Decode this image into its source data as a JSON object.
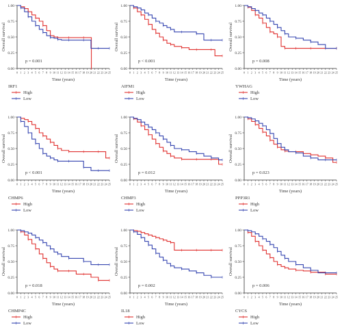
{
  "colors": {
    "high": "#e0302f",
    "low": "#3545b0",
    "axis": "#333333"
  },
  "chart_data": [
    {
      "type": "line",
      "gene": "IRF1",
      "p_value": "p = 0.001",
      "ylabel": "Overall survival",
      "xlabel": "Time (years)",
      "xlim": [
        0,
        25
      ],
      "ylim": [
        0,
        1
      ],
      "yticks": [
        "0.00",
        "0.25",
        "0.50",
        "0.75",
        "1.00"
      ],
      "series": [
        {
          "name": "High",
          "x": [
            0,
            1,
            2,
            3,
            4,
            5,
            6,
            7,
            8,
            9,
            10,
            11,
            12,
            14,
            16,
            18,
            20,
            20.1
          ],
          "y": [
            1.0,
            0.98,
            0.95,
            0.9,
            0.85,
            0.8,
            0.75,
            0.68,
            0.6,
            0.52,
            0.5,
            0.49,
            0.49,
            0.49,
            0.49,
            0.49,
            0.49,
            0.0
          ]
        },
        {
          "name": "Low",
          "x": [
            0,
            1,
            2,
            3,
            4,
            5,
            6,
            7,
            8,
            9,
            10,
            11,
            12,
            14,
            16,
            18,
            20,
            22,
            24,
            25
          ],
          "y": [
            1.0,
            0.96,
            0.9,
            0.82,
            0.75,
            0.68,
            0.62,
            0.57,
            0.52,
            0.49,
            0.48,
            0.46,
            0.45,
            0.45,
            0.45,
            0.45,
            0.32,
            0.32,
            0.32,
            0.32
          ]
        }
      ]
    },
    {
      "type": "line",
      "gene": "AIFM1",
      "p_value": "p < 0.001",
      "ylabel": "Overall survival",
      "xlabel": "Time (years)",
      "xlim": [
        0,
        25
      ],
      "ylim": [
        0,
        1
      ],
      "yticks": [
        "0.00",
        "0.25",
        "0.50",
        "0.75",
        "1.00"
      ],
      "series": [
        {
          "name": "High",
          "x": [
            0,
            1,
            2,
            3,
            4,
            5,
            6,
            7,
            8,
            9,
            10,
            11,
            12,
            14,
            16,
            18,
            20,
            22,
            23,
            25
          ],
          "y": [
            1.0,
            0.96,
            0.9,
            0.85,
            0.78,
            0.7,
            0.62,
            0.56,
            0.5,
            0.45,
            0.4,
            0.38,
            0.35,
            0.33,
            0.3,
            0.3,
            0.3,
            0.3,
            0.2,
            0.2
          ]
        },
        {
          "name": "Low",
          "x": [
            0,
            1,
            2,
            3,
            4,
            5,
            6,
            7,
            8,
            9,
            10,
            11,
            12,
            14,
            16,
            18,
            20,
            22,
            24,
            25
          ],
          "y": [
            1.0,
            0.98,
            0.96,
            0.93,
            0.88,
            0.85,
            0.8,
            0.75,
            0.72,
            0.68,
            0.65,
            0.62,
            0.58,
            0.58,
            0.58,
            0.55,
            0.45,
            0.45,
            0.45,
            0.45
          ]
        }
      ]
    },
    {
      "type": "line",
      "gene": "YWHAG",
      "p_value": "p = 0.008",
      "ylabel": "Overall survival",
      "xlabel": "Time (years)",
      "xlim": [
        0,
        25
      ],
      "ylim": [
        0,
        1
      ],
      "yticks": [
        "0.00",
        "0.25",
        "0.50",
        "0.75",
        "1.00"
      ],
      "series": [
        {
          "name": "High",
          "x": [
            0,
            1,
            2,
            3,
            4,
            5,
            6,
            7,
            8,
            9,
            10,
            11,
            12,
            14,
            16,
            18,
            20,
            22,
            24,
            25
          ],
          "y": [
            1.0,
            0.97,
            0.92,
            0.85,
            0.8,
            0.72,
            0.65,
            0.58,
            0.55,
            0.5,
            0.35,
            0.32,
            0.32,
            0.32,
            0.32,
            0.32,
            0.32,
            0.32,
            0.32,
            0.32
          ]
        },
        {
          "name": "Low",
          "x": [
            0,
            1,
            2,
            3,
            4,
            5,
            6,
            7,
            8,
            9,
            10,
            11,
            12,
            14,
            16,
            18,
            20,
            22,
            24,
            25
          ],
          "y": [
            1.0,
            0.98,
            0.95,
            0.92,
            0.88,
            0.85,
            0.8,
            0.75,
            0.7,
            0.65,
            0.6,
            0.55,
            0.5,
            0.48,
            0.45,
            0.42,
            0.38,
            0.32,
            0.32,
            0.32
          ]
        }
      ]
    },
    {
      "type": "line",
      "gene": "CHMP6",
      "p_value": "p < 0.001",
      "ylabel": "Overall survival",
      "xlabel": "Time (years)",
      "xlim": [
        0,
        25
      ],
      "ylim": [
        0,
        1
      ],
      "yticks": [
        "0.00",
        "0.25",
        "0.50",
        "0.75",
        "1.00"
      ],
      "series": [
        {
          "name": "High",
          "x": [
            0,
            1,
            2,
            3,
            4,
            5,
            6,
            7,
            8,
            9,
            10,
            11,
            12,
            14,
            16,
            18,
            20,
            22,
            24,
            25
          ],
          "y": [
            1.0,
            0.98,
            0.96,
            0.93,
            0.88,
            0.82,
            0.75,
            0.7,
            0.65,
            0.6,
            0.55,
            0.5,
            0.47,
            0.45,
            0.45,
            0.45,
            0.45,
            0.45,
            0.35,
            0.35
          ]
        },
        {
          "name": "Low",
          "x": [
            0,
            1,
            2,
            3,
            4,
            5,
            6,
            7,
            8,
            9,
            10,
            11,
            12,
            14,
            16,
            18,
            20,
            22,
            24,
            25
          ],
          "y": [
            1.0,
            0.93,
            0.85,
            0.75,
            0.65,
            0.58,
            0.5,
            0.42,
            0.38,
            0.35,
            0.32,
            0.3,
            0.3,
            0.3,
            0.3,
            0.2,
            0.15,
            0.15,
            0.15,
            0.15
          ]
        }
      ]
    },
    {
      "type": "line",
      "gene": "CHMP3",
      "p_value": "p = 0.012",
      "ylabel": "Overall survival",
      "xlabel": "Time (years)",
      "xlim": [
        0,
        25
      ],
      "ylim": [
        0,
        1
      ],
      "yticks": [
        "0.00",
        "0.25",
        "0.50",
        "0.75",
        "1.00"
      ],
      "series": [
        {
          "name": "High",
          "x": [
            0,
            1,
            2,
            3,
            4,
            5,
            6,
            7,
            8,
            9,
            10,
            11,
            12,
            14,
            16,
            18,
            20,
            22,
            24,
            25
          ],
          "y": [
            1.0,
            0.97,
            0.92,
            0.86,
            0.8,
            0.72,
            0.65,
            0.58,
            0.52,
            0.46,
            0.42,
            0.38,
            0.35,
            0.33,
            0.33,
            0.33,
            0.33,
            0.33,
            0.25,
            0.25
          ]
        },
        {
          "name": "Low",
          "x": [
            0,
            1,
            2,
            3,
            4,
            5,
            6,
            7,
            8,
            9,
            10,
            11,
            12,
            14,
            16,
            18,
            20,
            22,
            24,
            25
          ],
          "y": [
            1.0,
            0.98,
            0.96,
            0.92,
            0.88,
            0.84,
            0.8,
            0.75,
            0.7,
            0.65,
            0.6,
            0.55,
            0.5,
            0.48,
            0.45,
            0.42,
            0.38,
            0.35,
            0.32,
            0.32
          ]
        }
      ]
    },
    {
      "type": "line",
      "gene": "PPP3R1",
      "p_value": "p = 0.023",
      "ylabel": "Overall survival",
      "xlabel": "Time (years)",
      "xlim": [
        0,
        25
      ],
      "ylim": [
        0,
        1
      ],
      "yticks": [
        "0.00",
        "0.25",
        "0.50",
        "0.75",
        "1.00"
      ],
      "series": [
        {
          "name": "High",
          "x": [
            0,
            1,
            2,
            3,
            4,
            5,
            6,
            7,
            8,
            9,
            10,
            11,
            12,
            14,
            16,
            18,
            20,
            22,
            24,
            25
          ],
          "y": [
            1.0,
            0.97,
            0.93,
            0.88,
            0.82,
            0.76,
            0.7,
            0.63,
            0.57,
            0.52,
            0.48,
            0.46,
            0.45,
            0.45,
            0.42,
            0.4,
            0.38,
            0.35,
            0.28,
            0.28
          ]
        },
        {
          "name": "Low",
          "x": [
            0,
            1,
            2,
            3,
            4,
            5,
            6,
            7,
            8,
            9,
            10,
            11,
            12,
            14,
            16,
            18,
            20,
            22,
            24,
            25
          ],
          "y": [
            1.0,
            0.99,
            0.97,
            0.94,
            0.9,
            0.86,
            0.8,
            0.74,
            0.66,
            0.58,
            0.52,
            0.48,
            0.45,
            0.43,
            0.38,
            0.35,
            0.32,
            0.32,
            0.32,
            0.32
          ]
        }
      ]
    },
    {
      "type": "line",
      "gene": "CHMP4C",
      "p_value": "p = 0.018",
      "ylabel": "Overall survival",
      "xlabel": "Time (years)",
      "xlim": [
        0,
        25
      ],
      "ylim": [
        0,
        1
      ],
      "yticks": [
        "0.00",
        "0.25",
        "0.50",
        "0.75",
        "1.00"
      ],
      "series": [
        {
          "name": "High",
          "x": [
            0,
            1,
            2,
            3,
            4,
            5,
            6,
            7,
            8,
            9,
            10,
            11,
            12,
            14,
            16,
            18,
            20,
            22,
            24,
            25
          ],
          "y": [
            1.0,
            0.97,
            0.92,
            0.85,
            0.78,
            0.7,
            0.62,
            0.55,
            0.48,
            0.42,
            0.38,
            0.35,
            0.35,
            0.35,
            0.3,
            0.3,
            0.25,
            0.2,
            0.2,
            0.2
          ]
        },
        {
          "name": "Low",
          "x": [
            0,
            1,
            2,
            3,
            4,
            5,
            6,
            7,
            8,
            9,
            10,
            11,
            12,
            14,
            16,
            18,
            20,
            22,
            24,
            25
          ],
          "y": [
            1.0,
            0.99,
            0.97,
            0.95,
            0.92,
            0.88,
            0.84,
            0.8,
            0.75,
            0.7,
            0.65,
            0.62,
            0.58,
            0.55,
            0.55,
            0.5,
            0.45,
            0.45,
            0.45,
            0.45
          ]
        }
      ]
    },
    {
      "type": "line",
      "gene": "IL18",
      "p_value": "p = 0.002",
      "ylabel": "Overall survival",
      "xlabel": "Time (years)",
      "xlim": [
        0,
        25
      ],
      "ylim": [
        0,
        1
      ],
      "yticks": [
        "0.00",
        "0.25",
        "0.50",
        "0.75",
        "1.00"
      ],
      "series": [
        {
          "name": "High",
          "x": [
            0,
            1,
            2,
            3,
            4,
            5,
            6,
            7,
            8,
            9,
            10,
            11,
            12,
            14,
            16,
            18,
            20,
            22,
            24,
            25
          ],
          "y": [
            1.0,
            0.99,
            0.98,
            0.96,
            0.94,
            0.92,
            0.9,
            0.88,
            0.86,
            0.84,
            0.82,
            0.8,
            0.68,
            0.68,
            0.68,
            0.68,
            0.68,
            0.68,
            0.68,
            0.68
          ]
        },
        {
          "name": "Low",
          "x": [
            0,
            1,
            2,
            3,
            4,
            5,
            6,
            7,
            8,
            9,
            10,
            11,
            12,
            14,
            16,
            18,
            20,
            22,
            24,
            25
          ],
          "y": [
            1.0,
            0.97,
            0.93,
            0.88,
            0.82,
            0.76,
            0.7,
            0.63,
            0.57,
            0.52,
            0.47,
            0.43,
            0.4,
            0.38,
            0.35,
            0.32,
            0.28,
            0.25,
            0.25,
            0.25
          ]
        }
      ]
    },
    {
      "type": "line",
      "gene": "CYCS",
      "p_value": "p = 0.006",
      "ylabel": "Overall survival",
      "xlabel": "Time (years)",
      "xlim": [
        0,
        25
      ],
      "ylim": [
        0,
        1
      ],
      "yticks": [
        "0.00",
        "0.25",
        "0.50",
        "0.75",
        "1.00"
      ],
      "series": [
        {
          "name": "High",
          "x": [
            0,
            1,
            2,
            3,
            4,
            5,
            6,
            7,
            8,
            9,
            10,
            11,
            12,
            14,
            16,
            18,
            20,
            22,
            24,
            25
          ],
          "y": [
            1.0,
            0.96,
            0.9,
            0.82,
            0.75,
            0.68,
            0.62,
            0.56,
            0.5,
            0.45,
            0.42,
            0.4,
            0.38,
            0.36,
            0.35,
            0.33,
            0.33,
            0.3,
            0.3,
            0.3
          ]
        },
        {
          "name": "Low",
          "x": [
            0,
            1,
            2,
            3,
            4,
            5,
            6,
            7,
            8,
            9,
            10,
            11,
            12,
            14,
            16,
            18,
            20,
            22,
            24,
            25
          ],
          "y": [
            1.0,
            0.99,
            0.97,
            0.94,
            0.9,
            0.86,
            0.82,
            0.77,
            0.72,
            0.66,
            0.6,
            0.55,
            0.5,
            0.45,
            0.4,
            0.36,
            0.32,
            0.32,
            0.32,
            0.32
          ]
        }
      ]
    }
  ]
}
